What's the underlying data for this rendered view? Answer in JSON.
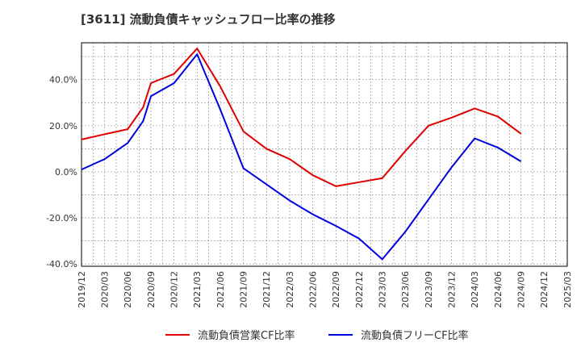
{
  "title": "[3611]  流動負債キャッシュフロー比率の推移",
  "chart_data": {
    "type": "line",
    "title": "[3611]  流動負債キャッシュフロー比率の推移",
    "xlabel": "",
    "ylabel": "",
    "ylim": [
      -41,
      56
    ],
    "y_ticks": [
      "40.0%",
      "20.0%",
      "0.0%",
      "-20.0%",
      "-40.0%"
    ],
    "y_tick_values": [
      40,
      20,
      0,
      -20,
      -40
    ],
    "x_ticks": [
      "2019/12",
      "2020/03",
      "2020/06",
      "2020/09",
      "2020/12",
      "2021/03",
      "2021/06",
      "2021/09",
      "2021/12",
      "2022/03",
      "2022/06",
      "2022/09",
      "2022/12",
      "2023/03",
      "2023/06",
      "2023/09",
      "2023/12",
      "2024/03",
      "2024/06",
      "2024/09",
      "2024/12",
      "2025/03"
    ],
    "x_range": [
      "2019/12",
      "2025/03"
    ],
    "grid": true,
    "legend_position": "bottom",
    "series": [
      {
        "name": "流動負債営業CF比率",
        "color": "#e00000",
        "points": [
          [
            "2019/12",
            14.0
          ],
          [
            "2020/03",
            16.3
          ],
          [
            "2020/06",
            18.5
          ],
          [
            "2020/08",
            28.0
          ],
          [
            "2020/09",
            38.5
          ],
          [
            "2020/12",
            42.5
          ],
          [
            "2021/03",
            53.5
          ],
          [
            "2021/06",
            37.0
          ],
          [
            "2021/09",
            17.5
          ],
          [
            "2021/12",
            10.0
          ],
          [
            "2022/03",
            5.5
          ],
          [
            "2022/06",
            -1.5
          ],
          [
            "2022/09",
            -6.3
          ],
          [
            "2022/12",
            -4.5
          ],
          [
            "2023/03",
            -2.8
          ],
          [
            "2023/06",
            9.0
          ],
          [
            "2023/09",
            20.0
          ],
          [
            "2023/12",
            23.5
          ],
          [
            "2024/03",
            27.5
          ],
          [
            "2024/06",
            24.0
          ],
          [
            "2024/09",
            16.5
          ]
        ]
      },
      {
        "name": "流動負債フリーCF比率",
        "color": "#0000e0",
        "points": [
          [
            "2019/12",
            1.0
          ],
          [
            "2020/03",
            5.5
          ],
          [
            "2020/06",
            12.5
          ],
          [
            "2020/08",
            22.0
          ],
          [
            "2020/09",
            32.8
          ],
          [
            "2020/12",
            38.5
          ],
          [
            "2021/03",
            51.0
          ],
          [
            "2021/06",
            27.0
          ],
          [
            "2021/09",
            1.5
          ],
          [
            "2021/12",
            -5.5
          ],
          [
            "2022/03",
            -12.5
          ],
          [
            "2022/06",
            -18.5
          ],
          [
            "2022/09",
            -23.5
          ],
          [
            "2022/12",
            -29.0
          ],
          [
            "2023/03",
            -38.0
          ],
          [
            "2023/06",
            -26.0
          ],
          [
            "2023/09",
            -12.0
          ],
          [
            "2023/12",
            2.0
          ],
          [
            "2024/03",
            14.5
          ],
          [
            "2024/06",
            10.5
          ],
          [
            "2024/09",
            4.5
          ]
        ]
      }
    ]
  }
}
